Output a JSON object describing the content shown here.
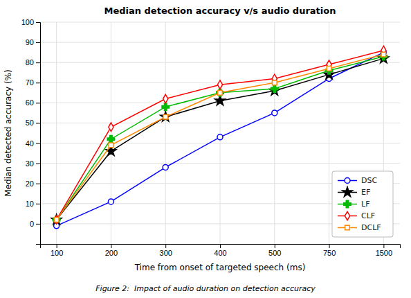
{
  "chart_data": {
    "type": "line",
    "title": "Median detection accuracy v/s audio duration",
    "x_label": "Time from onset of targeted speech (ms)",
    "y_label": "Median detected accuracy (%)",
    "caption": "Figure 2:  Impact of audio duration on detection accuracy",
    "categories": [
      "100",
      "200",
      "300",
      "400",
      "500",
      "750",
      "1500"
    ],
    "series": [
      {
        "name": "DSC",
        "color": "#0000ff",
        "marker": "circle",
        "values": [
          -1,
          11,
          28,
          43,
          55,
          72,
          85
        ]
      },
      {
        "name": "EF",
        "color": "#000000",
        "marker": "star",
        "values": [
          2,
          36,
          53,
          61,
          66,
          74,
          82
        ]
      },
      {
        "name": "LF",
        "color": "#00bb00",
        "marker": "plus",
        "values": [
          2,
          42,
          58,
          65,
          67,
          76,
          83
        ]
      },
      {
        "name": "CLF",
        "color": "#ff0000",
        "marker": "diamond",
        "values": [
          2,
          48,
          62,
          69,
          72,
          79,
          86
        ]
      },
      {
        "name": "DCLF",
        "color": "#ff8800",
        "marker": "square",
        "values": [
          2,
          39,
          53,
          65,
          70,
          77,
          84
        ]
      }
    ],
    "ylim": [
      -10,
      100
    ],
    "yticks": [
      0,
      10,
      20,
      30,
      40,
      50,
      60,
      70,
      80,
      90,
      100
    ],
    "grid": true,
    "legend": "lower right"
  }
}
